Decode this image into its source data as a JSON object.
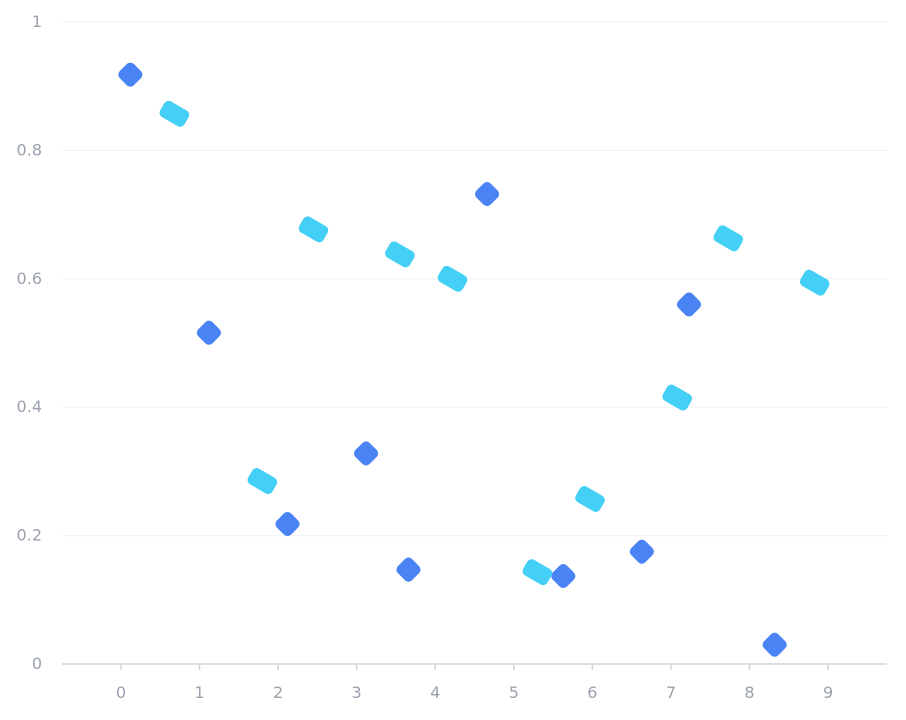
{
  "chart_data": {
    "type": "scatter",
    "title": "",
    "xlabel": "",
    "ylabel": "",
    "xlim": [
      -0.75,
      9.75
    ],
    "ylim": [
      0,
      1
    ],
    "x_ticks": [
      "0",
      "1",
      "2",
      "3",
      "4",
      "5",
      "6",
      "7",
      "8",
      "9"
    ],
    "y_ticks": [
      "0",
      "0.2",
      "0.4",
      "0.6",
      "0.8",
      "1"
    ],
    "grid": {
      "horizontal": true,
      "vertical": false
    },
    "series": [
      {
        "color": "#4a84f4",
        "marker": "rotated-square",
        "points": [
          {
            "x": 0.12,
            "y": 0.918
          },
          {
            "x": 1.12,
            "y": 0.516
          },
          {
            "x": 2.12,
            "y": 0.218
          },
          {
            "x": 3.12,
            "y": 0.328
          },
          {
            "x": 3.66,
            "y": 0.147
          },
          {
            "x": 4.66,
            "y": 0.732
          },
          {
            "x": 5.63,
            "y": 0.137
          },
          {
            "x": 6.63,
            "y": 0.175
          },
          {
            "x": 7.23,
            "y": 0.56
          },
          {
            "x": 8.32,
            "y": 0.03
          }
        ]
      },
      {
        "color": "#44cff7",
        "marker": "rotated-rect",
        "points": [
          {
            "x": 0.68,
            "y": 0.857
          },
          {
            "x": 1.8,
            "y": 0.285
          },
          {
            "x": 2.45,
            "y": 0.677
          },
          {
            "x": 3.55,
            "y": 0.638
          },
          {
            "x": 4.22,
            "y": 0.6
          },
          {
            "x": 5.3,
            "y": 0.143
          },
          {
            "x": 5.97,
            "y": 0.257
          },
          {
            "x": 7.08,
            "y": 0.415
          },
          {
            "x": 7.73,
            "y": 0.663
          },
          {
            "x": 8.83,
            "y": 0.594
          }
        ]
      }
    ]
  }
}
